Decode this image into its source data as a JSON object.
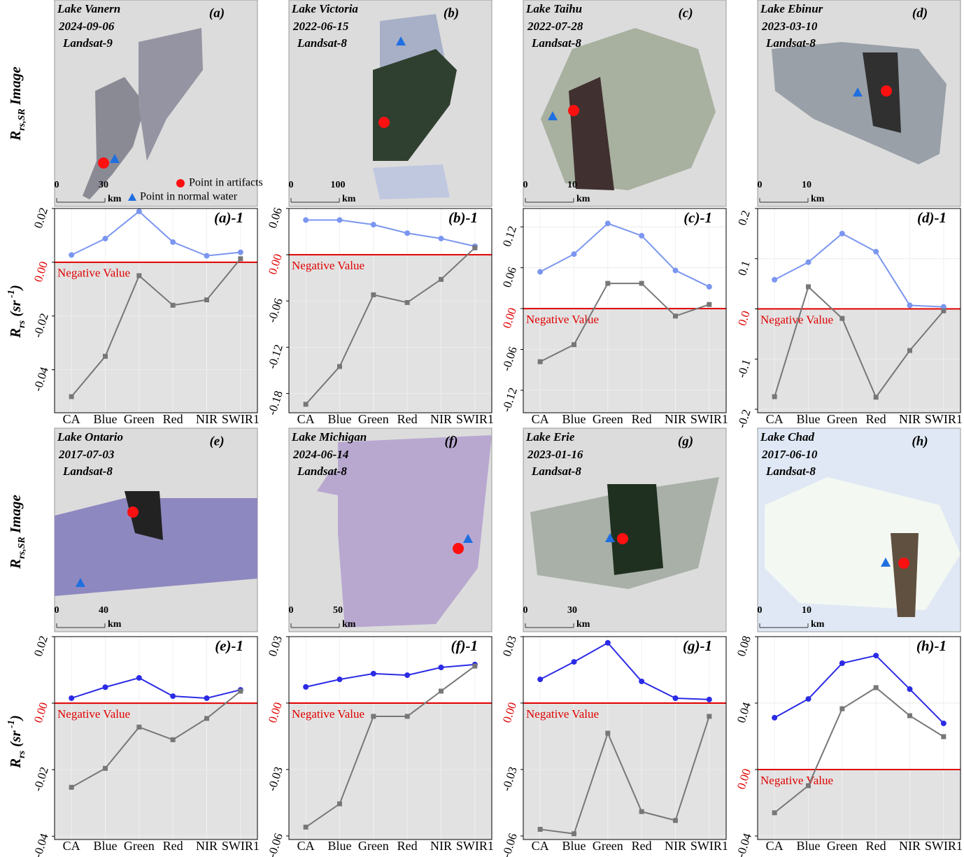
{
  "row_labels": {
    "image": {
      "main": "R",
      "sub": "rs,SR",
      "tail": " Image"
    },
    "chart": {
      "main": "R",
      "sub": "rs",
      "tail": " (sr",
      "sup": " -1",
      "end": ")"
    }
  },
  "legend": {
    "artifact": "Point in artifacts",
    "normal": "Point in normal water"
  },
  "images": [
    {
      "title": "Lake Vanern",
      "date": "2024-09-06",
      "sensor": "Landsat-9",
      "label": "(a)",
      "scale": [
        "0",
        "30",
        "km"
      ]
    },
    {
      "title": "Lake Victoria",
      "date": "2022-06-15",
      "sensor": "Landsat-8",
      "label": "(b)",
      "scale": [
        "0",
        "100",
        "km"
      ]
    },
    {
      "title": "Lake Taihu",
      "date": "2022-07-28",
      "sensor": "Landsat-8",
      "label": "(c)",
      "scale": [
        "0",
        "10",
        "km"
      ]
    },
    {
      "title": "Lake Ebinur",
      "date": "2023-03-10",
      "sensor": "Landsat-8",
      "label": "(d)",
      "scale": [
        "0",
        "10",
        "km"
      ]
    },
    {
      "title": "Lake Ontario",
      "date": "2017-07-03",
      "sensor": "Landsat-8",
      "label": "(e)",
      "scale": [
        "0",
        "40",
        "km"
      ]
    },
    {
      "title": "Lake Michigan",
      "date": "2024-06-14",
      "sensor": "Landsat-8",
      "label": "(f)",
      "scale": [
        "0",
        "50",
        "km"
      ]
    },
    {
      "title": "Lake Erie",
      "date": "2023-01-16",
      "sensor": "Landsat-8",
      "label": "(g)",
      "scale": [
        "0",
        "30",
        "km"
      ]
    },
    {
      "title": "Lake Chad",
      "date": "2017-06-10",
      "sensor": "Landsat-8",
      "label": "(h)",
      "scale": [
        "0",
        "10",
        "km"
      ]
    }
  ],
  "chart_data": [
    {
      "type": "line",
      "title": "(a)-1",
      "annotation": "Negative Value",
      "categories": [
        "CA",
        "Blue",
        "Green",
        "Red",
        "NIR",
        "SWIR1"
      ],
      "ylim": [
        -0.056,
        0.02
      ],
      "yticks": [
        0.02,
        {
          "value": 0,
          "label": "0.00"
        },
        -0.02,
        -0.04
      ],
      "grid": true,
      "zero_line_color": "#e00000",
      "negative_shade": "#e2e2e2",
      "series": [
        {
          "color": "#7b96f0",
          "marker": "circle",
          "values": [
            0.0027,
            0.0088,
            0.0189,
            0.0075,
            0.0024,
            0.0037
          ]
        },
        {
          "color": "#777777",
          "marker": "square",
          "values": [
            -0.05,
            -0.035,
            -0.005,
            -0.016,
            -0.014,
            0.0013
          ]
        }
      ]
    },
    {
      "type": "line",
      "title": "(b)-1",
      "annotation": "Negative Value",
      "categories": [
        "CA",
        "Blue",
        "Green",
        "Red",
        "NIR",
        "SWIR1"
      ],
      "ylim": [
        -0.205,
        0.06
      ],
      "yticks": [
        0.06,
        {
          "value": 0,
          "label": "0.00"
        },
        -0.06,
        -0.12,
        -0.18
      ],
      "grid": true,
      "zero_line_color": "#e00000",
      "negative_shade": "#e2e2e2",
      "series": [
        {
          "color": "#7b96f0",
          "marker": "circle",
          "values": [
            0.045,
            0.045,
            0.039,
            0.028,
            0.021,
            0.011
          ]
        },
        {
          "color": "#777777",
          "marker": "square",
          "values": [
            -0.194,
            -0.145,
            -0.052,
            -0.062,
            -0.032,
            0.009
          ]
        }
      ]
    },
    {
      "type": "line",
      "title": "(c)-1",
      "annotation": "Negative Value",
      "categories": [
        "CA",
        "Blue",
        "Green",
        "Red",
        "NIR",
        "SWIR1"
      ],
      "ylim": [
        -0.153,
        0.147
      ],
      "yticks": [
        0.12,
        0.06,
        {
          "value": 0,
          "label": "0.00"
        },
        -0.06,
        -0.12
      ],
      "grid": true,
      "zero_line_color": "#e00000",
      "negative_shade": "#e2e2e2",
      "series": [
        {
          "color": "#7b96f0",
          "marker": "circle",
          "values": [
            0.054,
            0.08,
            0.125,
            0.107,
            0.056,
            0.032
          ]
        },
        {
          "color": "#777777",
          "marker": "square",
          "values": [
            -0.078,
            -0.053,
            0.037,
            0.037,
            -0.011,
            0.006
          ]
        }
      ]
    },
    {
      "type": "line",
      "title": "(d)-1",
      "annotation": "Negative Value",
      "categories": [
        "CA",
        "Blue",
        "Green",
        "Red",
        "NIR",
        "SWIR1"
      ],
      "ylim": [
        -0.207,
        0.2
      ],
      "yticks": [
        0.2,
        0.1,
        {
          "value": 0,
          "label": "0.0"
        },
        -0.1,
        -0.2
      ],
      "grid": true,
      "zero_line_color": "#e00000",
      "negative_shade": "#e2e2e2",
      "series": [
        {
          "color": "#7b96f0",
          "marker": "circle",
          "values": [
            0.058,
            0.093,
            0.15,
            0.114,
            0.007,
            0.004
          ]
        },
        {
          "color": "#777777",
          "marker": "square",
          "values": [
            -0.175,
            0.044,
            -0.019,
            -0.176,
            -0.083,
            -0.004
          ]
        }
      ]
    },
    {
      "type": "line",
      "title": "(e)-1",
      "annotation": "Negative Value",
      "categories": [
        "CA",
        "Blue",
        "Green",
        "Red",
        "NIR",
        "SWIR1"
      ],
      "ylim": [
        -0.041,
        0.02
      ],
      "yticks": [
        0.02,
        {
          "value": 0,
          "label": "0.00"
        },
        -0.02,
        -0.04
      ],
      "grid": true,
      "zero_line_color": "#e00000",
      "negative_shade": "#e2e2e2",
      "series": [
        {
          "color": "#2b2be6",
          "marker": "circle",
          "values": [
            0.0015,
            0.0048,
            0.0076,
            0.0021,
            0.0015,
            0.004
          ]
        },
        {
          "color": "#777777",
          "marker": "square",
          "values": [
            -0.0253,
            -0.0196,
            -0.0072,
            -0.011,
            -0.0046,
            0.0036
          ]
        }
      ]
    },
    {
      "type": "line",
      "title": "(f)-1",
      "annotation": "Negative Value",
      "categories": [
        "CA",
        "Blue",
        "Green",
        "Red",
        "NIR",
        "SWIR1"
      ],
      "ylim": [
        -0.0616,
        0.03
      ],
      "yticks": [
        0.03,
        {
          "value": 0,
          "label": "0.00"
        },
        -0.03,
        -0.06
      ],
      "grid": true,
      "zero_line_color": "#e00000",
      "negative_shade": "#e2e2e2",
      "series": [
        {
          "color": "#2b2be6",
          "marker": "circle",
          "values": [
            0.0073,
            0.0107,
            0.0133,
            0.0126,
            0.0161,
            0.0174
          ]
        },
        {
          "color": "#777777",
          "marker": "square",
          "values": [
            -0.056,
            -0.0455,
            -0.006,
            -0.006,
            0.0054,
            0.0167
          ]
        }
      ]
    },
    {
      "type": "line",
      "title": "(g)-1",
      "annotation": "Negative Value",
      "categories": [
        "CA",
        "Blue",
        "Green",
        "Red",
        "NIR",
        "SWIR1"
      ],
      "ylim": [
        -0.0616,
        0.03
      ],
      "yticks": [
        0.03,
        {
          "value": 0,
          "label": "0.00"
        },
        -0.03,
        -0.06
      ],
      "grid": true,
      "zero_line_color": "#e00000",
      "negative_shade": "#e2e2e2",
      "series": [
        {
          "color": "#2b2be6",
          "marker": "circle",
          "values": [
            0.0107,
            0.0186,
            0.0272,
            0.0098,
            0.0022,
            0.0016
          ]
        },
        {
          "color": "#777777",
          "marker": "square",
          "values": [
            -0.057,
            -0.059,
            -0.0136,
            -0.049,
            -0.053,
            -0.006
          ]
        }
      ]
    },
    {
      "type": "line",
      "title": "(h)-1",
      "annotation": "Negative Value",
      "categories": [
        "CA",
        "Blue",
        "Green",
        "Red",
        "NIR",
        "SWIR1"
      ],
      "ylim": [
        -0.0421,
        0.08
      ],
      "yticks": [
        0.08,
        0.04,
        {
          "value": 0,
          "label": "0.00"
        },
        -0.04
      ],
      "grid": true,
      "zero_line_color": "#e00000",
      "negative_shade": "#e2e2e2",
      "series": [
        {
          "color": "#2b2be6",
          "marker": "circle",
          "values": [
            0.0312,
            0.0425,
            0.064,
            0.0686,
            0.0484,
            0.0278
          ]
        },
        {
          "color": "#777777",
          "marker": "square",
          "values": [
            -0.026,
            -0.0097,
            0.0366,
            0.0493,
            0.0324,
            0.0198
          ]
        }
      ]
    }
  ]
}
